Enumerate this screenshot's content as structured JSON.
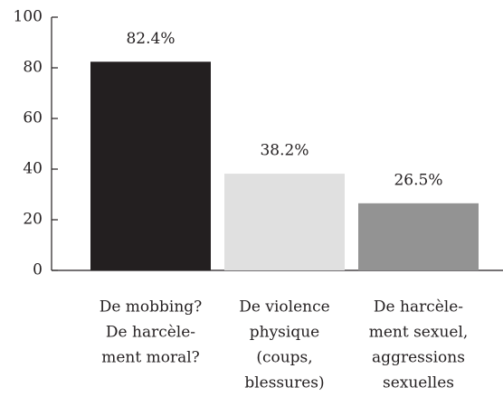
{
  "chart_data": {
    "type": "bar",
    "categories": [
      [
        "De mobbing?",
        "De harcèle-",
        "ment moral?"
      ],
      [
        "De violence",
        "physique",
        "(coups,",
        "blessures)"
      ],
      [
        "De harcèle-",
        "ment sexuel,",
        "aggressions",
        "sexuelles"
      ]
    ],
    "values": [
      82.4,
      38.2,
      26.5
    ],
    "value_labels": [
      "82.4%",
      "38.2%",
      "26.5%"
    ],
    "colors": [
      "#231f20",
      "#e0e0e0",
      "#939393"
    ],
    "ylim": [
      0,
      100
    ],
    "yticks": [
      0,
      20,
      40,
      60,
      80,
      100
    ],
    "grid": false
  }
}
